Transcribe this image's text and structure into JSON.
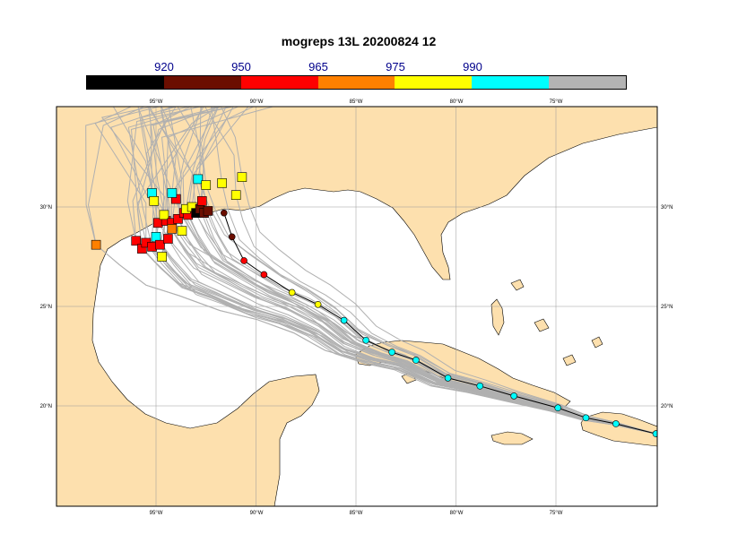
{
  "title": "mogreps 13L 20200824 12",
  "colorbar": {
    "labels": [
      "920",
      "950",
      "965",
      "975",
      "990"
    ],
    "colors": [
      "#000000",
      "#6b0e00",
      "#ff0000",
      "#ff8000",
      "#ffff00",
      "#00ffff",
      "#b4b4b4"
    ]
  },
  "map": {
    "ocean_color": "#ffffff",
    "land_color": "#fde0ae",
    "lon_labels": [
      "95°W",
      "90°W",
      "85°W",
      "80°W",
      "75°W"
    ],
    "lat_labels": [
      "30°N",
      "25°N",
      "20°N"
    ]
  },
  "track": {
    "points": [
      {
        "lon": -70.0,
        "lat": 18.6,
        "color": "#00ffff"
      },
      {
        "lon": -72.0,
        "lat": 19.1,
        "color": "#00ffff"
      },
      {
        "lon": -73.5,
        "lat": 19.4,
        "color": "#00ffff"
      },
      {
        "lon": -74.9,
        "lat": 19.9,
        "color": "#00ffff"
      },
      {
        "lon": -77.1,
        "lat": 20.5,
        "color": "#00ffff"
      },
      {
        "lon": -78.8,
        "lat": 21.0,
        "color": "#00ffff"
      },
      {
        "lon": -80.4,
        "lat": 21.4,
        "color": "#00ffff"
      },
      {
        "lon": -82.0,
        "lat": 22.3,
        "color": "#00ffff"
      },
      {
        "lon": -83.2,
        "lat": 22.7,
        "color": "#00ffff"
      },
      {
        "lon": -84.5,
        "lat": 23.3,
        "color": "#00ffff"
      },
      {
        "lon": -85.6,
        "lat": 24.3,
        "color": "#00ffff"
      },
      {
        "lon": -86.9,
        "lat": 25.1,
        "color": "#ffff00"
      },
      {
        "lon": -88.2,
        "lat": 25.7,
        "color": "#ffff00"
      },
      {
        "lon": -89.6,
        "lat": 26.6,
        "color": "#ff0000"
      },
      {
        "lon": -90.6,
        "lat": 27.3,
        "color": "#ff0000"
      },
      {
        "lon": -91.2,
        "lat": 28.5,
        "color": "#6b0e00"
      },
      {
        "lon": -91.6,
        "lat": 29.7,
        "color": "#6b0e00"
      }
    ]
  },
  "landfall_markers": [
    {
      "lon": -98.0,
      "lat": 28.1,
      "color": "#ff8000"
    },
    {
      "lon": -96.0,
      "lat": 28.3,
      "color": "#ff0000"
    },
    {
      "lon": -95.7,
      "lat": 27.9,
      "color": "#ff0000"
    },
    {
      "lon": -95.5,
      "lat": 28.2,
      "color": "#ff0000"
    },
    {
      "lon": -95.2,
      "lat": 28.0,
      "color": "#ff0000"
    },
    {
      "lon": -95.0,
      "lat": 28.5,
      "color": "#00ffff"
    },
    {
      "lon": -94.8,
      "lat": 28.1,
      "color": "#ff0000"
    },
    {
      "lon": -94.7,
      "lat": 27.5,
      "color": "#ffff00"
    },
    {
      "lon": -94.4,
      "lat": 28.4,
      "color": "#ff0000"
    },
    {
      "lon": -94.9,
      "lat": 29.2,
      "color": "#ff0000"
    },
    {
      "lon": -94.5,
      "lat": 29.3,
      "color": "#ff0000"
    },
    {
      "lon": -94.6,
      "lat": 29.6,
      "color": "#ffff00"
    },
    {
      "lon": -94.2,
      "lat": 29.2,
      "color": "#ff0000"
    },
    {
      "lon": -94.2,
      "lat": 28.9,
      "color": "#ff8000"
    },
    {
      "lon": -93.9,
      "lat": 29.4,
      "color": "#ff0000"
    },
    {
      "lon": -93.7,
      "lat": 28.8,
      "color": "#ffff00"
    },
    {
      "lon": -93.6,
      "lat": 29.7,
      "color": "#ff0000"
    },
    {
      "lon": -93.4,
      "lat": 29.6,
      "color": "#ff0000"
    },
    {
      "lon": -93.5,
      "lat": 29.9,
      "color": "#ffff00"
    },
    {
      "lon": -93.2,
      "lat": 30.0,
      "color": "#ffff00"
    },
    {
      "lon": -93.0,
      "lat": 29.7,
      "color": "#000000"
    },
    {
      "lon": -92.8,
      "lat": 29.9,
      "color": "#6b0e00"
    },
    {
      "lon": -92.6,
      "lat": 29.7,
      "color": "#6b0e00"
    },
    {
      "lon": -92.4,
      "lat": 29.8,
      "color": "#6b0e00"
    },
    {
      "lon": -92.7,
      "lat": 30.3,
      "color": "#ff0000"
    },
    {
      "lon": -94.0,
      "lat": 30.4,
      "color": "#ff0000"
    },
    {
      "lon": -94.2,
      "lat": 30.7,
      "color": "#00ffff"
    },
    {
      "lon": -95.2,
      "lat": 30.7,
      "color": "#00ffff"
    },
    {
      "lon": -95.1,
      "lat": 30.3,
      "color": "#ffff00"
    },
    {
      "lon": -92.9,
      "lat": 31.4,
      "color": "#00ffff"
    },
    {
      "lon": -92.5,
      "lat": 31.1,
      "color": "#ffff00"
    },
    {
      "lon": -91.7,
      "lat": 31.2,
      "color": "#ffff00"
    },
    {
      "lon": -90.7,
      "lat": 31.5,
      "color": "#ffff00"
    },
    {
      "lon": -91.0,
      "lat": 30.6,
      "color": "#ffff00"
    }
  ]
}
